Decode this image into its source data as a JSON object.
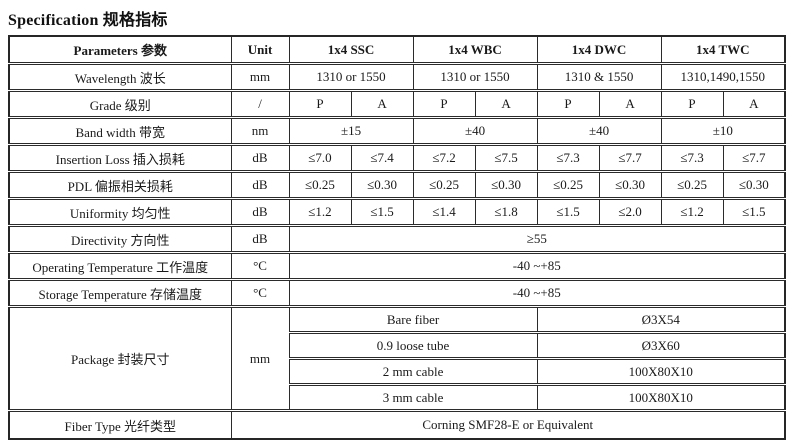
{
  "page": {
    "title": "Specification 规格指标"
  },
  "table": {
    "header": {
      "parameters": "Parameters 参数",
      "unit": "Unit",
      "models": [
        "1x4 SSC",
        "1x4 WBC",
        "1x4 DWC",
        "1x4 TWC"
      ]
    },
    "rows": {
      "wavelength": {
        "label": "Wavelength 波长",
        "unit": "mm",
        "values": [
          "1310 or 1550",
          "1310 or 1550",
          "1310 & 1550",
          "1310,1490,1550"
        ]
      },
      "grade": {
        "label": "Grade 级别",
        "unit": "/",
        "values": [
          "P",
          "A",
          "P",
          "A",
          "P",
          "A",
          "P",
          "A"
        ]
      },
      "bandwidth": {
        "label": "Band width 带宽",
        "unit": "nm",
        "values": [
          "±15",
          "±40",
          "±40",
          "±10"
        ]
      },
      "insertion_loss": {
        "label": "Insertion Loss 插入损耗",
        "unit": "dB",
        "values": [
          "≤7.0",
          "≤7.4",
          "≤7.2",
          "≤7.5",
          "≤7.3",
          "≤7.7",
          "≤7.3",
          "≤7.7"
        ]
      },
      "pdl": {
        "label": "PDL 偏振相关损耗",
        "unit": "dB",
        "values": [
          "≤0.25",
          "≤0.30",
          "≤0.25",
          "≤0.30",
          "≤0.25",
          "≤0.30",
          "≤0.25",
          "≤0.30"
        ]
      },
      "uniformity": {
        "label": "Uniformity 均匀性",
        "unit": "dB",
        "values": [
          "≤1.2",
          "≤1.5",
          "≤1.4",
          "≤1.8",
          "≤1.5",
          "≤2.0",
          "≤1.2",
          "≤1.5"
        ]
      },
      "directivity": {
        "label": "Directivity 方向性",
        "unit": "dB",
        "value": "≥55"
      },
      "operating_temp": {
        "label": "Operating Temperature 工作温度",
        "unit": "°C",
        "value": "-40 ~+85"
      },
      "storage_temp": {
        "label": "Storage Temperature 存储温度",
        "unit": "°C",
        "value": "-40 ~+85"
      },
      "package": {
        "label": "Package 封装尺寸",
        "unit": "mm",
        "items": [
          {
            "type": "Bare fiber",
            "size": "Ø3X54"
          },
          {
            "type": "0.9 loose tube",
            "size": "Ø3X60"
          },
          {
            "type": "2 mm cable",
            "size": "100X80X10"
          },
          {
            "type": "3 mm cable",
            "size": "100X80X10"
          }
        ]
      },
      "fiber_type": {
        "label": "Fiber Type 光纤类型",
        "value": "Corning SMF28-E or Equivalent"
      }
    }
  }
}
